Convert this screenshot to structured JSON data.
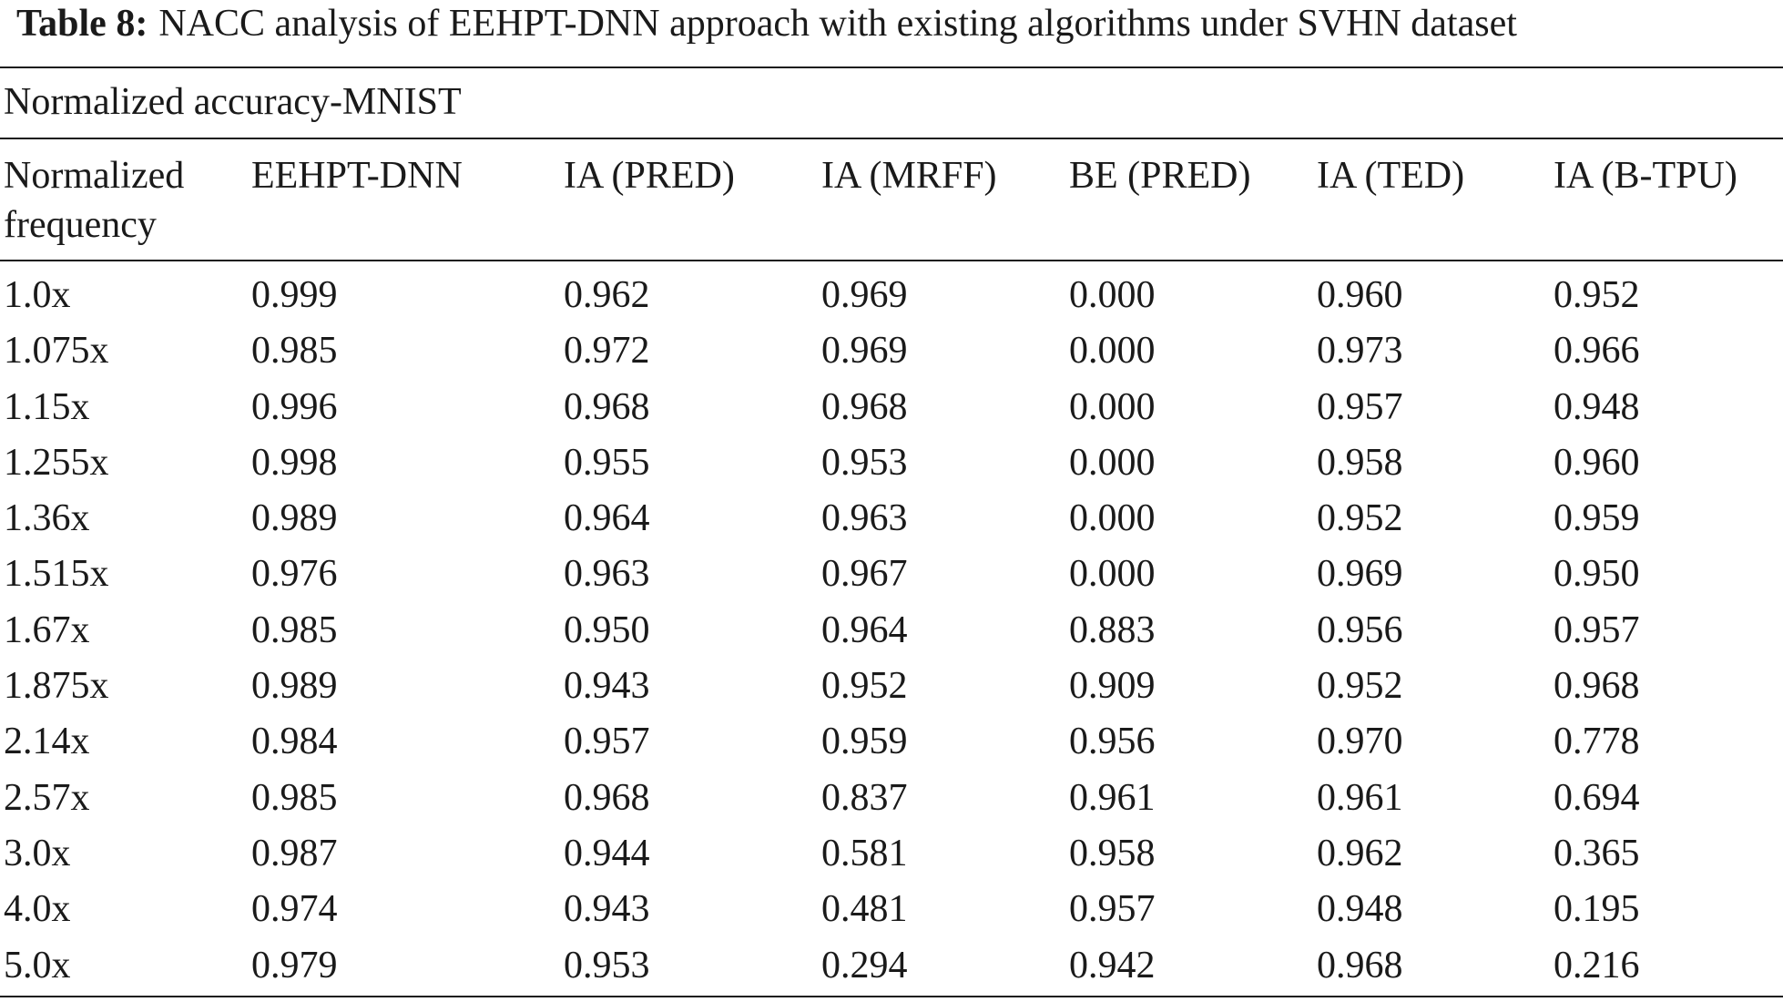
{
  "caption": {
    "label": "Table 8:",
    "text": "NACC analysis of EEHPT-DNN approach with existing algorithms under SVHN dataset"
  },
  "section_title": "Normalized accuracy-MNIST",
  "columns": [
    "Normalized\nfrequency",
    "EEHPT-DNN",
    "IA (PRED)",
    "IA (MRFF)",
    "BE (PRED)",
    "IA (TED)",
    "IA (B-TPU)"
  ],
  "rows": [
    [
      "1.0x",
      "0.999",
      "0.962",
      "0.969",
      "0.000",
      "0.960",
      "0.952"
    ],
    [
      "1.075x",
      "0.985",
      "0.972",
      "0.969",
      "0.000",
      "0.973",
      "0.966"
    ],
    [
      "1.15x",
      "0.996",
      "0.968",
      "0.968",
      "0.000",
      "0.957",
      "0.948"
    ],
    [
      "1.255x",
      "0.998",
      "0.955",
      "0.953",
      "0.000",
      "0.958",
      "0.960"
    ],
    [
      "1.36x",
      "0.989",
      "0.964",
      "0.963",
      "0.000",
      "0.952",
      "0.959"
    ],
    [
      "1.515x",
      "0.976",
      "0.963",
      "0.967",
      "0.000",
      "0.969",
      "0.950"
    ],
    [
      "1.67x",
      "0.985",
      "0.950",
      "0.964",
      "0.883",
      "0.956",
      "0.957"
    ],
    [
      "1.875x",
      "0.989",
      "0.943",
      "0.952",
      "0.909",
      "0.952",
      "0.968"
    ],
    [
      "2.14x",
      "0.984",
      "0.957",
      "0.959",
      "0.956",
      "0.970",
      "0.778"
    ],
    [
      "2.57x",
      "0.985",
      "0.968",
      "0.837",
      "0.961",
      "0.961",
      "0.694"
    ],
    [
      "3.0x",
      "0.987",
      "0.944",
      "0.581",
      "0.958",
      "0.962",
      "0.365"
    ],
    [
      "4.0x",
      "0.974",
      "0.943",
      "0.481",
      "0.957",
      "0.948",
      "0.195"
    ],
    [
      "5.0x",
      "0.979",
      "0.953",
      "0.294",
      "0.942",
      "0.968",
      "0.216"
    ]
  ]
}
